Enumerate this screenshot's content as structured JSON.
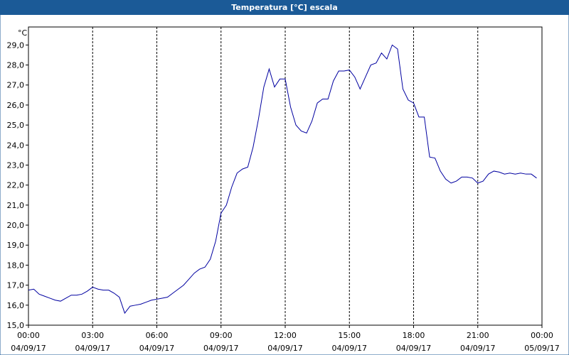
{
  "chart_data": {
    "type": "line",
    "title": "Temperatura [°C] escala",
    "y_label": "°C",
    "x": [
      0,
      0.25,
      0.5,
      0.75,
      1,
      1.25,
      1.5,
      1.75,
      2,
      2.25,
      2.5,
      2.75,
      3,
      3.25,
      3.5,
      3.75,
      4,
      4.25,
      4.5,
      4.75,
      5,
      5.25,
      5.5,
      5.75,
      6,
      6.25,
      6.5,
      6.75,
      7,
      7.25,
      7.5,
      7.75,
      8,
      8.25,
      8.5,
      8.75,
      9,
      9.25,
      9.5,
      9.75,
      10,
      10.25,
      10.5,
      10.75,
      11,
      11.25,
      11.5,
      11.75,
      12,
      12.25,
      12.5,
      12.75,
      13,
      13.25,
      13.5,
      13.75,
      14,
      14.25,
      14.5,
      14.75,
      15,
      15.25,
      15.5,
      15.75,
      16,
      16.25,
      16.5,
      16.75,
      17,
      17.25,
      17.5,
      17.75,
      18,
      18.25,
      18.5,
      18.75,
      19,
      19.25,
      19.5,
      19.75,
      20,
      20.25,
      20.5,
      20.75,
      21,
      21.25,
      21.5,
      21.75,
      22,
      22.25,
      22.5,
      22.75,
      23,
      23.25,
      23.5,
      23.75
    ],
    "series": [
      {
        "name": "Temperatura",
        "color": "#0000a0",
        "values": [
          16.75,
          16.8,
          16.55,
          16.45,
          16.35,
          16.25,
          16.2,
          16.35,
          16.5,
          16.5,
          16.55,
          16.7,
          16.9,
          16.8,
          16.75,
          16.75,
          16.6,
          16.4,
          15.6,
          15.95,
          16.0,
          16.05,
          16.15,
          16.25,
          16.3,
          16.35,
          16.4,
          16.6,
          16.8,
          17.0,
          17.3,
          17.6,
          17.8,
          17.9,
          18.3,
          19.2,
          20.6,
          21.0,
          21.9,
          22.6,
          22.8,
          22.9,
          23.9,
          25.3,
          26.9,
          27.8,
          26.9,
          27.3,
          27.3,
          25.9,
          25.0,
          24.7,
          24.6,
          25.2,
          26.1,
          26.3,
          26.3,
          27.2,
          27.7,
          27.7,
          27.75,
          27.4,
          26.8,
          27.4,
          28.0,
          28.1,
          28.6,
          28.3,
          29.0,
          28.8,
          26.8,
          26.25,
          26.1,
          25.4,
          25.4,
          23.4,
          23.35,
          22.7,
          22.3,
          22.1,
          22.2,
          22.4,
          22.4,
          22.35,
          22.1,
          22.2,
          22.55,
          22.7,
          22.65,
          22.55,
          22.6,
          22.55,
          22.6,
          22.55,
          22.55,
          22.35
        ]
      }
    ],
    "xlim": [
      0,
      24
    ],
    "xticks": [
      {
        "value": 0,
        "label": "00:00",
        "date": "04/09/17"
      },
      {
        "value": 3,
        "label": "03:00",
        "date": "04/09/17"
      },
      {
        "value": 6,
        "label": "06:00",
        "date": "04/09/17"
      },
      {
        "value": 9,
        "label": "09:00",
        "date": "04/09/17"
      },
      {
        "value": 12,
        "label": "12:00",
        "date": "04/09/17"
      },
      {
        "value": 15,
        "label": "15:00",
        "date": "04/09/17"
      },
      {
        "value": 18,
        "label": "18:00",
        "date": "04/09/17"
      },
      {
        "value": 21,
        "label": "21:00",
        "date": "04/09/17"
      },
      {
        "value": 24,
        "label": "00:00",
        "date": "05/09/17"
      }
    ],
    "ylim": [
      15,
      29.9
    ],
    "yticks": [
      {
        "value": 15,
        "label": "15,0"
      },
      {
        "value": 16,
        "label": "16,0"
      },
      {
        "value": 17,
        "label": "17,0"
      },
      {
        "value": 18,
        "label": "18,0"
      },
      {
        "value": 19,
        "label": "19,0"
      },
      {
        "value": 20,
        "label": "20,0"
      },
      {
        "value": 21,
        "label": "21,0"
      },
      {
        "value": 22,
        "label": "22,0"
      },
      {
        "value": 23,
        "label": "23,0"
      },
      {
        "value": 24,
        "label": "24,0"
      },
      {
        "value": 25,
        "label": "25,0"
      },
      {
        "value": 26,
        "label": "26,0"
      },
      {
        "value": 27,
        "label": "27,0"
      },
      {
        "value": 28,
        "label": "28,0"
      },
      {
        "value": 29,
        "label": "29,0"
      }
    ],
    "grid_x": true,
    "grid_y": false
  }
}
